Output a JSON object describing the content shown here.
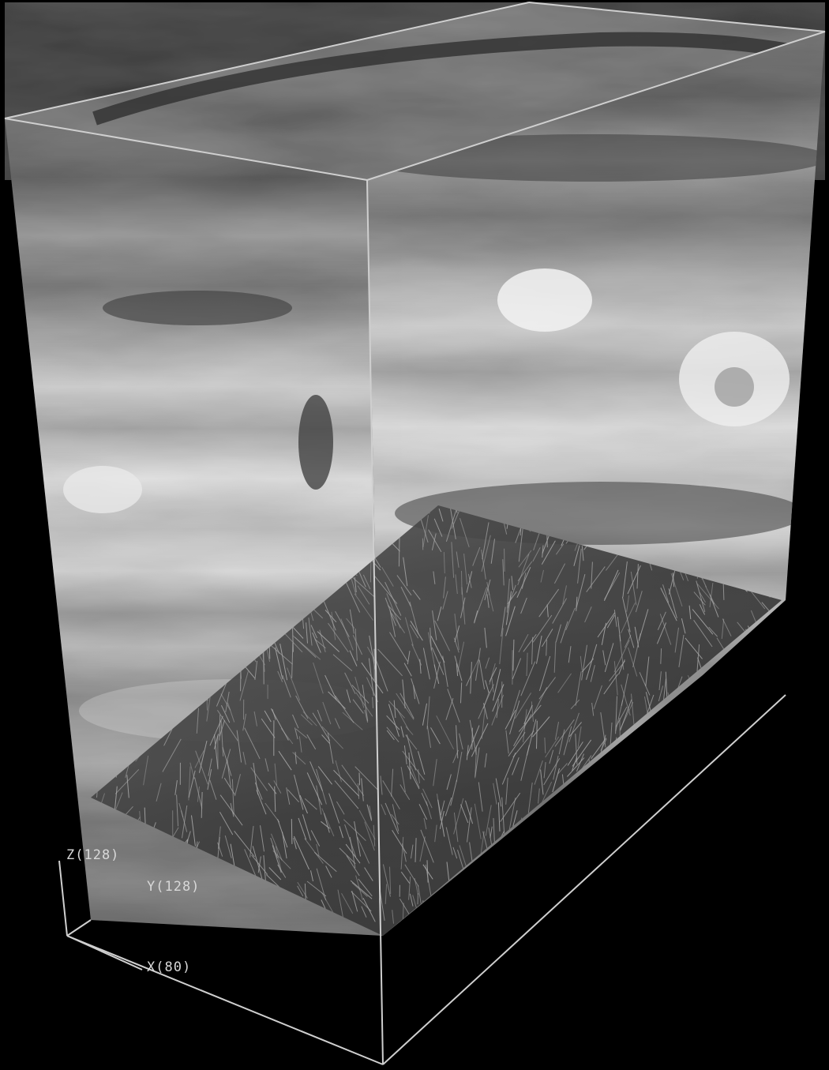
{
  "scene": {
    "background_color": "#000000",
    "bounding_box_color": "#cfcfcf",
    "vector_glyph_color": "#a8a8a8",
    "slice_colormap": "grayscale"
  },
  "axes": {
    "z_label": "Z(128)",
    "y_label": "Y(128)",
    "x_label": "X(80)"
  }
}
